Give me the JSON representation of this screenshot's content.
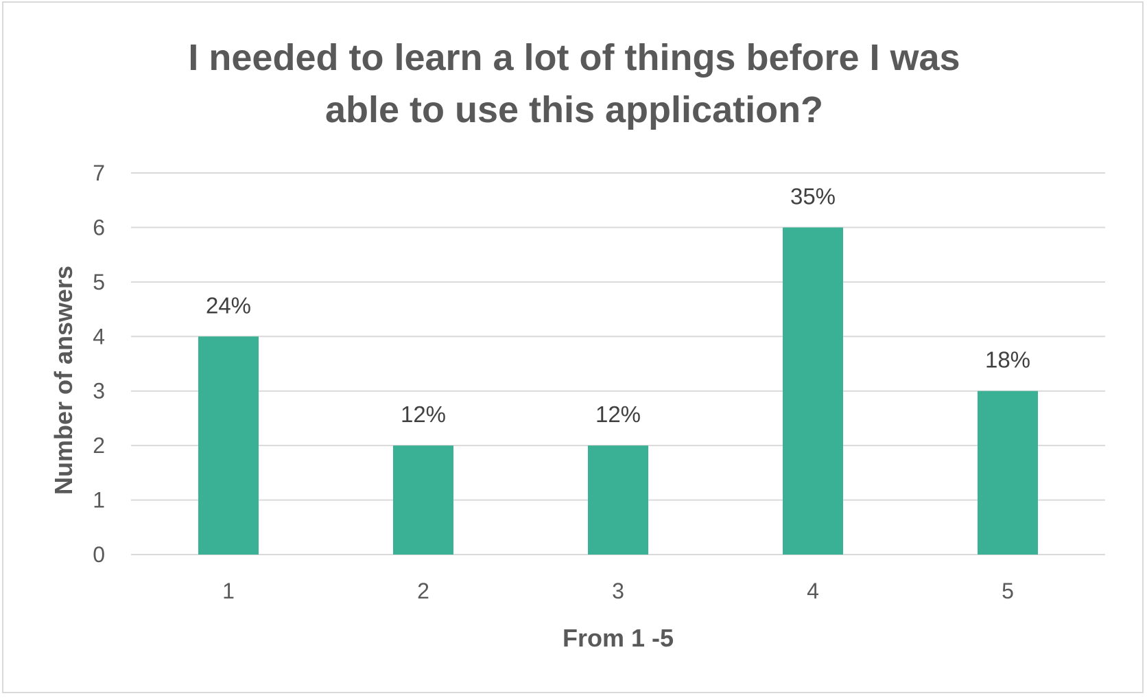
{
  "chart_data": {
    "type": "bar",
    "title_lines": [
      "I needed to learn a lot of things before I was",
      "able to use this application?"
    ],
    "xlabel": "From 1 -5",
    "ylabel": "Number of answers",
    "categories": [
      "1",
      "2",
      "3",
      "4",
      "5"
    ],
    "values": [
      4,
      2,
      2,
      6,
      3
    ],
    "data_labels": [
      "24%",
      "12%",
      "12%",
      "35%",
      "18%"
    ],
    "ylim": [
      0,
      7
    ],
    "yticks": [
      0,
      1,
      2,
      3,
      4,
      5,
      6,
      7
    ],
    "grid": true,
    "legend": "none",
    "bar_color": "#3AB095",
    "grid_color": "#d9d9d9"
  }
}
